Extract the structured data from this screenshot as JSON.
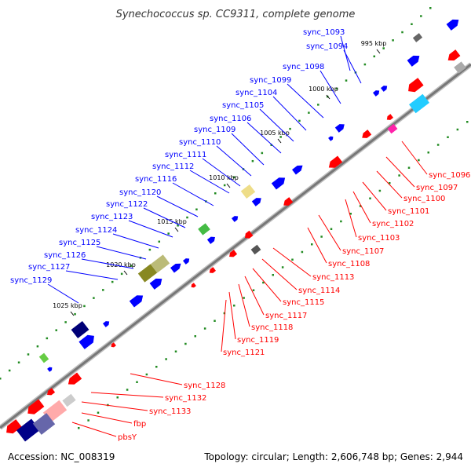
{
  "title": "Synechococcus sp. CC9311, complete genome",
  "footer": {
    "accession": "Accession: NC_008319",
    "summary": "Topology: circular; Length: 2,606,748 bp; Genes: 2,944"
  },
  "colors": {
    "forward": "#0000ff",
    "reverse": "#ff0000",
    "backbone": "#888888",
    "gc_marker": "#228b22"
  },
  "kbp_marks": [
    "995 kbp",
    "1000 kbp",
    "1005 kbp",
    "1010 kbp",
    "1015 kbp",
    "1020 kbp",
    "1025 kbp"
  ],
  "outer_labels": [
    "sync_1093",
    "sync_1094",
    "sync_1098",
    "sync_1099",
    "sync_1104",
    "sync_1105",
    "sync_1106",
    "sync_1109",
    "sync_1110",
    "sync_1111",
    "sync_1112",
    "sync_1116",
    "sync_1120",
    "sync_1122",
    "sync_1123",
    "sync_1124",
    "sync_1125",
    "sync_1126",
    "sync_1127",
    "sync_1129"
  ],
  "inner_labels": [
    "sync_1096",
    "sync_1097",
    "sync_1100",
    "sync_1101",
    "sync_1102",
    "sync_1103",
    "sync_1107",
    "sync_1108",
    "sync_1113",
    "sync_1114",
    "sync_1115",
    "sync_1117",
    "sync_1118",
    "sync_1119",
    "sync_1121",
    "sync_1128",
    "sync_1132",
    "sync_1133",
    "fbp",
    "pbsY"
  ]
}
